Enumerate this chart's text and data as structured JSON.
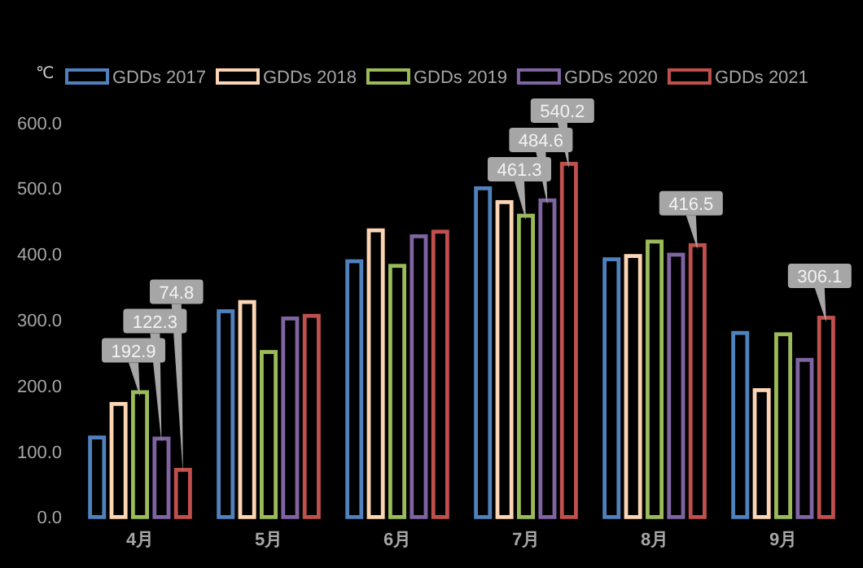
{
  "chart_data": {
    "type": "bar",
    "ylabel": "℃",
    "categories": [
      "4月",
      "5月",
      "6月",
      "7月",
      "8月",
      "9月"
    ],
    "series": [
      {
        "name": "GDDs 2017",
        "color": "#4f81bd",
        "values": [
          124,
          316,
          392,
          503,
          395,
          283
        ]
      },
      {
        "name": "GDDs 2018",
        "color": "#fcd5b4",
        "values": [
          175,
          330,
          439,
          482,
          400,
          196
        ]
      },
      {
        "name": "GDDs 2019",
        "color": "#9bbb59",
        "values": [
          192.9,
          254,
          385,
          461.3,
          422,
          281
        ],
        "value_labels": [
          "192.9",
          null,
          null,
          "461.3",
          null,
          null
        ]
      },
      {
        "name": "GDDs 2020",
        "color": "#8064a2",
        "values": [
          122.3,
          305,
          430,
          484.6,
          402,
          242
        ],
        "value_labels": [
          "122.3",
          null,
          null,
          "484.6",
          null,
          null
        ]
      },
      {
        "name": "GDDs 2021",
        "color": "#c0504d",
        "values": [
          74.8,
          309,
          437,
          540.2,
          416.5,
          306.1
        ],
        "value_labels": [
          "74.8",
          null,
          null,
          "540.2",
          "416.5",
          "306.1"
        ]
      }
    ],
    "ylim": [
      0,
      600
    ],
    "yticks": [
      {
        "value": 0,
        "label": "0.0"
      },
      {
        "value": 100,
        "label": "100.0"
      },
      {
        "value": 200,
        "label": "200.0"
      },
      {
        "value": 300,
        "label": "300.0"
      },
      {
        "value": 400,
        "label": "400.0"
      },
      {
        "value": 500,
        "label": "500.0"
      },
      {
        "value": 600,
        "label": "600.0"
      }
    ],
    "legend": "top",
    "grid": false
  }
}
